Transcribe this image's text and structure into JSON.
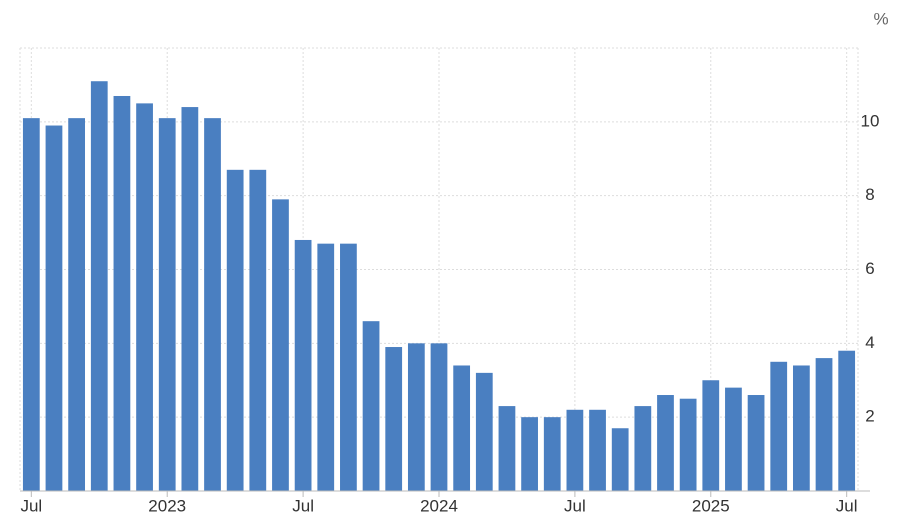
{
  "chart_data": {
    "type": "bar",
    "unit": "%",
    "categories": [
      "Jul",
      null,
      null,
      null,
      null,
      null,
      "2023",
      null,
      null,
      null,
      null,
      null,
      "Jul",
      null,
      null,
      null,
      null,
      null,
      "2024",
      null,
      null,
      null,
      null,
      null,
      "Jul",
      null,
      null,
      null,
      null,
      null,
      "2025",
      null,
      null,
      null,
      null,
      null,
      "Jul"
    ],
    "values": [
      10.1,
      9.9,
      10.1,
      11.1,
      10.7,
      10.5,
      10.1,
      10.4,
      10.1,
      8.7,
      8.7,
      7.9,
      6.8,
      6.7,
      6.7,
      4.6,
      3.9,
      4.0,
      4.0,
      3.4,
      3.2,
      2.3,
      2.0,
      2.0,
      2.2,
      2.2,
      1.7,
      2.3,
      2.6,
      2.5,
      3.0,
      2.8,
      2.6,
      3.5,
      3.4,
      3.6,
      3.8
    ],
    "color": "#4a7fc1",
    "ylim": [
      0,
      12
    ],
    "yticks": [
      2,
      4,
      6,
      8,
      10
    ],
    "grid": true
  }
}
